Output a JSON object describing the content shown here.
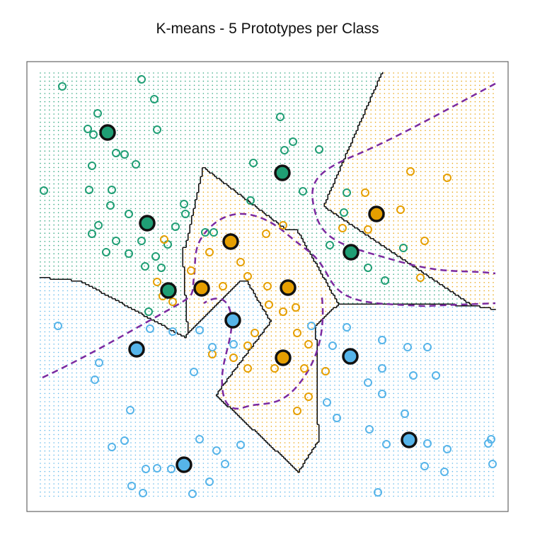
{
  "chart_data": {
    "type": "scatter",
    "title": "K-means - 5 Prototypes  per Class",
    "xlim": [
      38,
      718
    ],
    "ylim": [
      722,
      87
    ],
    "series": [
      {
        "color": "#1f9e74",
        "x": [
          88,
          200,
          218,
          138,
          124,
          132,
          164,
          176,
          130,
          222,
          62,
          126,
          158,
          156,
          182,
          260,
          262,
          139,
          130,
          164,
          200,
          237,
          182,
          220,
          205,
          228,
          210,
          302,
          354,
          396,
          414,
          402,
          451,
          358,
          428,
          490,
          486,
          466,
          520,
          544,
          570,
          150,
          192,
          248,
          290
        ],
        "y": [
          122,
          112,
          140,
          160,
          182,
          190,
          216,
          218,
          234,
          183,
          269,
          268,
          268,
          290,
          302,
          288,
          302,
          318,
          330,
          340,
          340,
          345,
          358,
          362,
          376,
          378,
          440,
          328,
          283,
          165,
          200,
          212,
          211,
          230,
          270,
          272,
          300,
          346,
          378,
          396,
          350,
          356,
          232,
          320,
          328
        ],
        "prototypes": {
          "x": [
            152,
            399,
            208,
            238,
            496
          ],
          "y": [
            187,
            244,
            315,
            410,
            356
          ]
        }
      },
      {
        "color": "#e69f00",
        "x": [
          580,
          632,
          516,
          566,
          600,
          520,
          484,
          232,
          296,
          340,
          350,
          378,
          400,
          420,
          436,
          460,
          436,
          420,
          350,
          360,
          330,
          300,
          350,
          388,
          430,
          594,
          244,
          222,
          270,
          315,
          376,
          400,
          230,
          418,
          380
        ],
        "y": [
          242,
          251,
          272,
          296,
          340,
          324,
          322,
          338,
          356,
          370,
          390,
          404,
          440,
          470,
          486,
          524,
          560,
          580,
          488,
          470,
          505,
          500,
          520,
          520,
          520,
          392,
          426,
          398,
          382,
          404,
          330,
          318,
          418,
          434,
          430
        ],
        "prototypes": {
          "x": [
            532,
            326,
            285,
            407,
            400
          ],
          "y": [
            302,
            341,
            407,
            406,
            505
          ]
        }
      },
      {
        "color": "#56b4e9",
        "x": [
          82,
          212,
          244,
          282,
          300,
          330,
          274,
          140,
          134,
          184,
          158,
          176,
          206,
          222,
          242,
          282,
          306,
          318,
          340,
          296,
          186,
          202,
          272,
          440,
          490,
          470,
          540,
          576,
          604,
          540,
          584,
          520,
          616,
          540,
          476,
          462,
          522,
          572,
          546,
          604,
          632,
          694,
          690,
          600,
          628,
          696,
          534
        ],
        "y": [
          460,
          464,
          468,
          466,
          490,
          486,
          525,
          512,
          536,
          579,
          631,
          622,
          662,
          661,
          662,
          620,
          636,
          655,
          628,
          680,
          686,
          696,
          697,
          460,
          462,
          488,
          480,
          490,
          490,
          520,
          530,
          540,
          530,
          556,
          590,
          568,
          606,
          584,
          627,
          626,
          634,
          620,
          626,
          658,
          666,
          655,
          695
        ],
        "prototypes": {
          "x": [
            329,
            193,
            495,
            578,
            260
          ],
          "y": [
            452,
            493,
            503,
            621,
            656
          ]
        }
      }
    ]
  }
}
